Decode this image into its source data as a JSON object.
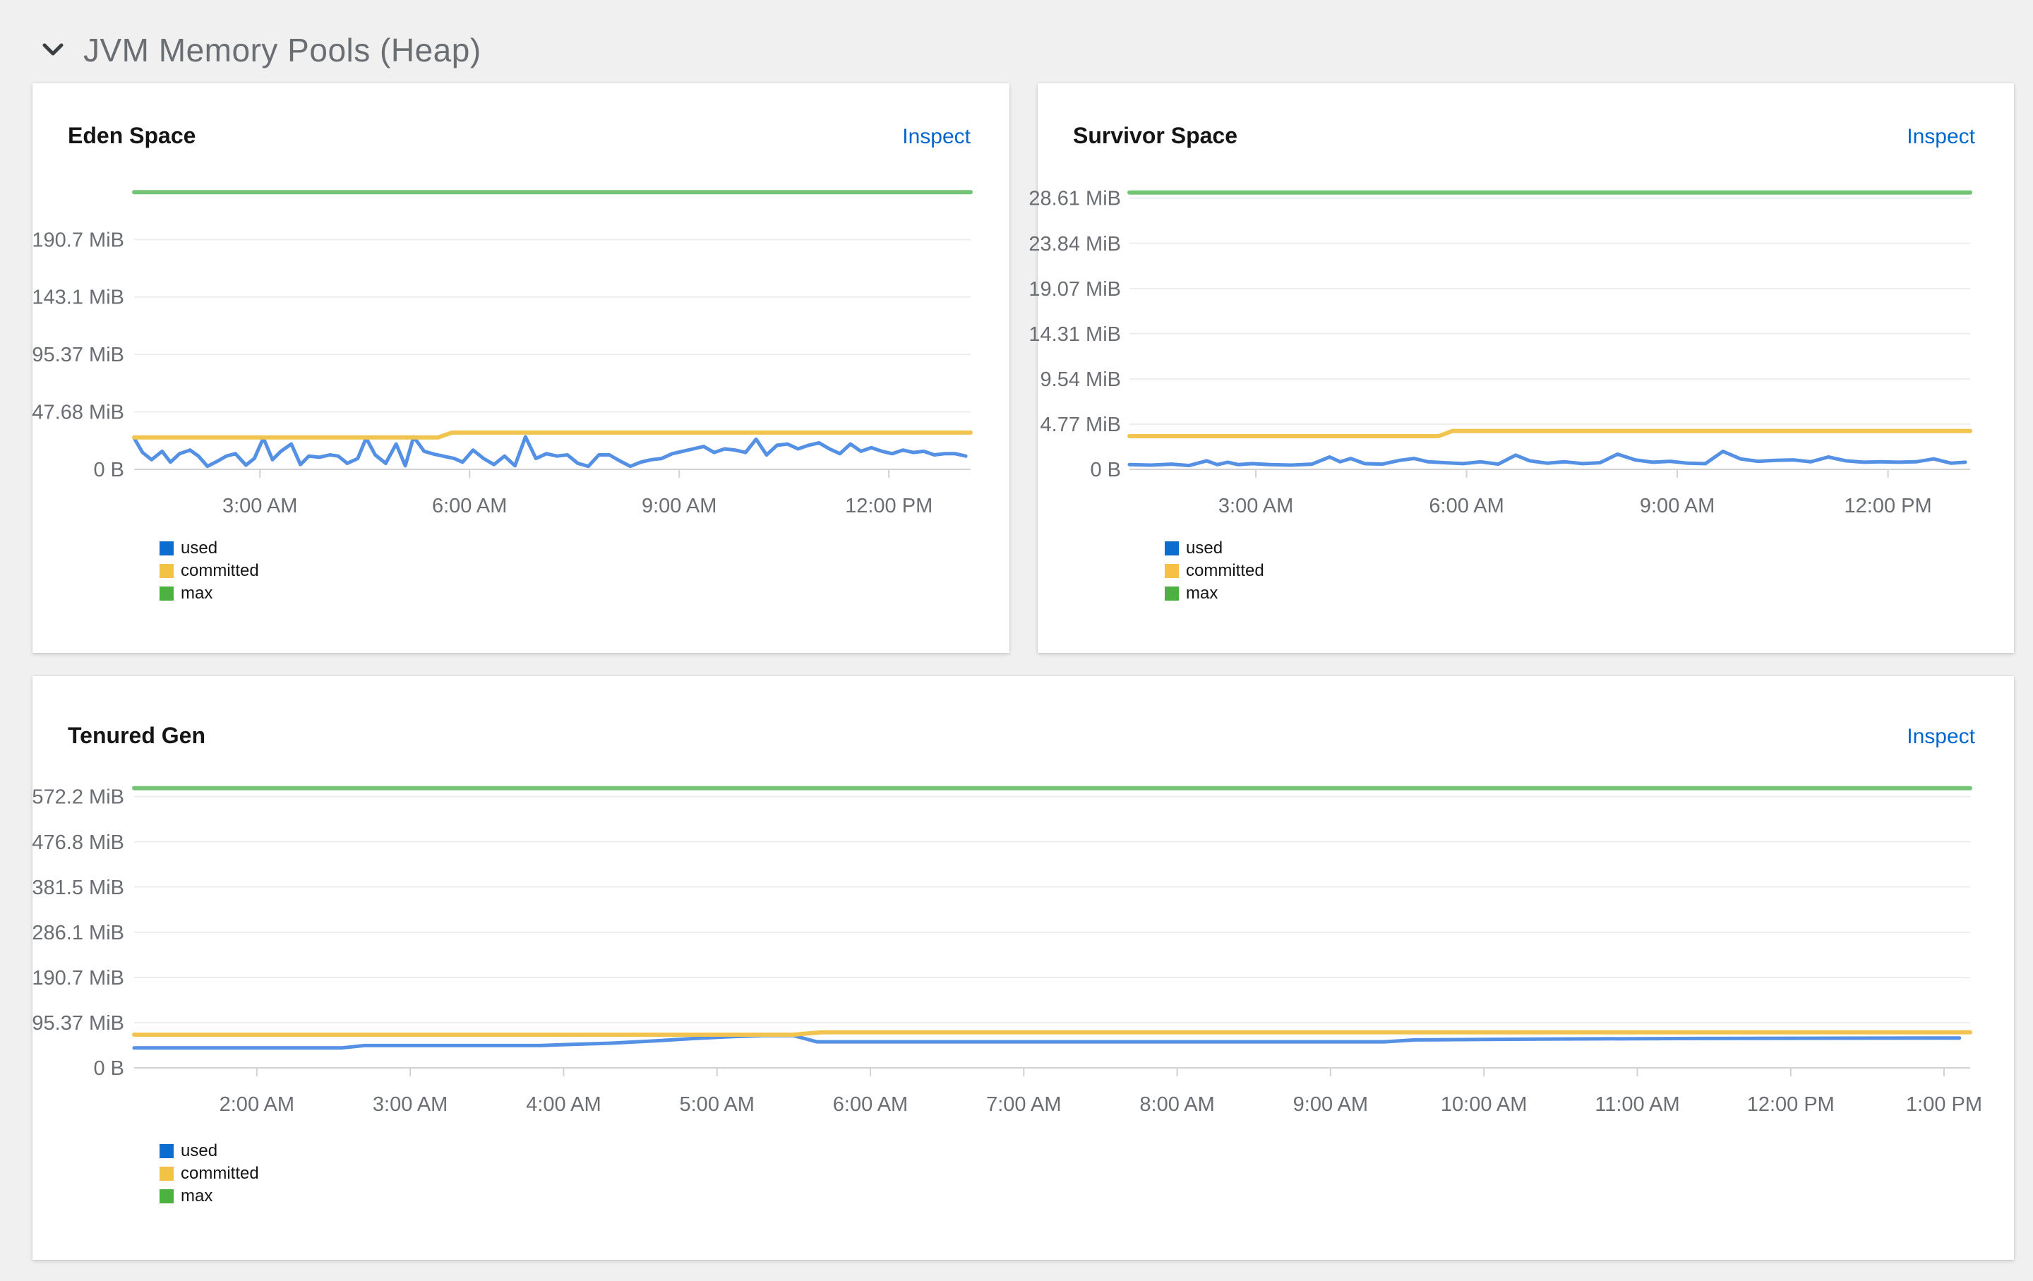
{
  "section": {
    "title": "JVM Memory Pools (Heap)"
  },
  "colors": {
    "page_bg": "#f0f0f0",
    "card_bg": "#ffffff",
    "grid": "#ededed",
    "axis": "#d2d2d2",
    "axis_text": "#6a6e73",
    "title_text": "#151515",
    "link": "#0066cc",
    "used_line": "#5490e4",
    "used_legend": "#0c6dce",
    "committed_line": "#f1c44f",
    "committed_legend": "#f4c145",
    "max_line": "#74c476",
    "max_legend": "#4cb140"
  },
  "chart_data": [
    {
      "id": "eden",
      "type": "line",
      "title": "Eden Space",
      "inspect_label": "Inspect",
      "y_unit": "MiB",
      "ymax_view": 238.4,
      "yticks": [
        {
          "v": 190.7,
          "label": "190.7 MiB"
        },
        {
          "v": 143.1,
          "label": "143.1 MiB"
        },
        {
          "v": 95.37,
          "label": "95.37 MiB"
        },
        {
          "v": 47.68,
          "label": "47.68 MiB"
        },
        {
          "v": 0,
          "label": "0 B"
        }
      ],
      "xdomain": [
        1.2,
        13.17
      ],
      "xticks": [
        {
          "v": 3,
          "label": "3:00 AM"
        },
        {
          "v": 6,
          "label": "6:00 AM"
        },
        {
          "v": 9,
          "label": "9:00 AM"
        },
        {
          "v": 12,
          "label": "12:00 PM"
        }
      ],
      "series": [
        {
          "name": "used",
          "width": 5,
          "points": [
            [
              1.2,
              26
            ],
            [
              1.32,
              14
            ],
            [
              1.45,
              8
            ],
            [
              1.6,
              15
            ],
            [
              1.72,
              6
            ],
            [
              1.85,
              13
            ],
            [
              2.0,
              16
            ],
            [
              2.12,
              11
            ],
            [
              2.25,
              2.5
            ],
            [
              2.4,
              7
            ],
            [
              2.52,
              11
            ],
            [
              2.65,
              13
            ],
            [
              2.8,
              3.5
            ],
            [
              2.92,
              9
            ],
            [
              3.05,
              26
            ],
            [
              3.18,
              8
            ],
            [
              3.3,
              15
            ],
            [
              3.45,
              21
            ],
            [
              3.58,
              4
            ],
            [
              3.7,
              11
            ],
            [
              3.85,
              10
            ],
            [
              4.0,
              12
            ],
            [
              4.12,
              11
            ],
            [
              4.25,
              5
            ],
            [
              4.4,
              9
            ],
            [
              4.52,
              26
            ],
            [
              4.65,
              12
            ],
            [
              4.8,
              5
            ],
            [
              4.95,
              21
            ],
            [
              5.08,
              3
            ],
            [
              5.2,
              27
            ],
            [
              5.35,
              15
            ],
            [
              5.5,
              12.5
            ],
            [
              5.62,
              11
            ],
            [
              5.78,
              9
            ],
            [
              5.9,
              6
            ],
            [
              6.05,
              16
            ],
            [
              6.2,
              9
            ],
            [
              6.35,
              4
            ],
            [
              6.5,
              11
            ],
            [
              6.65,
              3
            ],
            [
              6.8,
              27
            ],
            [
              6.95,
              9
            ],
            [
              7.1,
              13
            ],
            [
              7.25,
              11
            ],
            [
              7.4,
              12
            ],
            [
              7.55,
              5
            ],
            [
              7.7,
              2.5
            ],
            [
              7.85,
              12
            ],
            [
              8.0,
              12
            ],
            [
              8.15,
              7
            ],
            [
              8.3,
              2.5
            ],
            [
              8.45,
              6
            ],
            [
              8.6,
              8
            ],
            [
              8.75,
              9
            ],
            [
              8.9,
              13
            ],
            [
              9.05,
              15
            ],
            [
              9.2,
              17
            ],
            [
              9.35,
              19
            ],
            [
              9.5,
              14
            ],
            [
              9.65,
              17
            ],
            [
              9.8,
              16
            ],
            [
              9.95,
              14
            ],
            [
              10.1,
              25
            ],
            [
              10.25,
              12
            ],
            [
              10.4,
              20
            ],
            [
              10.55,
              21
            ],
            [
              10.7,
              17
            ],
            [
              10.85,
              20
            ],
            [
              11.0,
              22
            ],
            [
              11.15,
              17
            ],
            [
              11.3,
              13
            ],
            [
              11.45,
              21
            ],
            [
              11.6,
              15
            ],
            [
              11.75,
              18
            ],
            [
              11.9,
              15
            ],
            [
              12.05,
              13
            ],
            [
              12.2,
              16
            ],
            [
              12.35,
              14
            ],
            [
              12.5,
              15
            ],
            [
              12.65,
              12
            ],
            [
              12.8,
              13
            ],
            [
              12.95,
              13
            ],
            [
              13.1,
              11
            ]
          ]
        },
        {
          "name": "committed",
          "width": 6,
          "points": [
            [
              1.2,
              26.5
            ],
            [
              5.55,
              26.5
            ],
            [
              5.75,
              30.5
            ],
            [
              13.17,
              30.5
            ]
          ]
        },
        {
          "name": "max",
          "width": 6,
          "points": [
            [
              1.2,
              230
            ],
            [
              13.17,
              230
            ]
          ]
        }
      ]
    },
    {
      "id": "survivor",
      "type": "line",
      "title": "Survivor Space",
      "inspect_label": "Inspect",
      "y_unit": "MiB",
      "ymax_view": 30.3,
      "yticks": [
        {
          "v": 28.61,
          "label": "28.61 MiB"
        },
        {
          "v": 23.84,
          "label": "23.84 MiB"
        },
        {
          "v": 19.07,
          "label": "19.07 MiB"
        },
        {
          "v": 14.31,
          "label": "14.31 MiB"
        },
        {
          "v": 9.54,
          "label": "9.54 MiB"
        },
        {
          "v": 4.77,
          "label": "4.77 MiB"
        },
        {
          "v": 0,
          "label": "0 B"
        }
      ],
      "xdomain": [
        1.2,
        13.17
      ],
      "xticks": [
        {
          "v": 3,
          "label": "3:00 AM"
        },
        {
          "v": 6,
          "label": "6:00 AM"
        },
        {
          "v": 9,
          "label": "9:00 AM"
        },
        {
          "v": 12,
          "label": "12:00 PM"
        }
      ],
      "series": [
        {
          "name": "used",
          "width": 5,
          "points": [
            [
              1.2,
              0.5
            ],
            [
              1.5,
              0.45
            ],
            [
              1.8,
              0.55
            ],
            [
              2.05,
              0.4
            ],
            [
              2.3,
              0.9
            ],
            [
              2.45,
              0.5
            ],
            [
              2.6,
              0.75
            ],
            [
              2.75,
              0.5
            ],
            [
              2.95,
              0.6
            ],
            [
              3.2,
              0.5
            ],
            [
              3.5,
              0.45
            ],
            [
              3.8,
              0.55
            ],
            [
              4.05,
              1.3
            ],
            [
              4.2,
              0.8
            ],
            [
              4.35,
              1.15
            ],
            [
              4.55,
              0.6
            ],
            [
              4.8,
              0.55
            ],
            [
              5.05,
              0.95
            ],
            [
              5.25,
              1.15
            ],
            [
              5.45,
              0.8
            ],
            [
              5.7,
              0.7
            ],
            [
              5.95,
              0.6
            ],
            [
              6.2,
              0.8
            ],
            [
              6.45,
              0.55
            ],
            [
              6.7,
              1.5
            ],
            [
              6.9,
              0.9
            ],
            [
              7.15,
              0.65
            ],
            [
              7.4,
              0.8
            ],
            [
              7.65,
              0.6
            ],
            [
              7.9,
              0.7
            ],
            [
              8.15,
              1.6
            ],
            [
              8.4,
              1.0
            ],
            [
              8.65,
              0.75
            ],
            [
              8.9,
              0.85
            ],
            [
              9.15,
              0.65
            ],
            [
              9.4,
              0.6
            ],
            [
              9.65,
              1.9
            ],
            [
              9.9,
              1.1
            ],
            [
              10.15,
              0.85
            ],
            [
              10.4,
              0.95
            ],
            [
              10.65,
              1.0
            ],
            [
              10.9,
              0.8
            ],
            [
              11.15,
              1.3
            ],
            [
              11.4,
              0.9
            ],
            [
              11.65,
              0.75
            ],
            [
              11.9,
              0.8
            ],
            [
              12.15,
              0.75
            ],
            [
              12.4,
              0.8
            ],
            [
              12.65,
              1.1
            ],
            [
              12.9,
              0.65
            ],
            [
              13.1,
              0.75
            ]
          ]
        },
        {
          "name": "committed",
          "width": 6,
          "points": [
            [
              1.2,
              3.5
            ],
            [
              5.6,
              3.5
            ],
            [
              5.8,
              4.05
            ],
            [
              13.17,
              4.05
            ]
          ]
        },
        {
          "name": "max",
          "width": 6,
          "points": [
            [
              1.2,
              29.2
            ],
            [
              13.17,
              29.2
            ]
          ]
        }
      ]
    },
    {
      "id": "tenured",
      "type": "line",
      "title": "Tenured Gen",
      "inspect_label": "Inspect",
      "y_unit": "MiB",
      "ymax_view": 603,
      "yticks": [
        {
          "v": 572.2,
          "label": "572.2 MiB"
        },
        {
          "v": 476.8,
          "label": "476.8 MiB"
        },
        {
          "v": 381.5,
          "label": "381.5 MiB"
        },
        {
          "v": 286.1,
          "label": "286.1 MiB"
        },
        {
          "v": 190.7,
          "label": "190.7 MiB"
        },
        {
          "v": 95.37,
          "label": "95.37 MiB"
        },
        {
          "v": 0,
          "label": "0 B"
        }
      ],
      "xdomain": [
        1.2,
        13.17
      ],
      "xticks": [
        {
          "v": 2,
          "label": "2:00 AM"
        },
        {
          "v": 3,
          "label": "3:00 AM"
        },
        {
          "v": 4,
          "label": "4:00 AM"
        },
        {
          "v": 5,
          "label": "5:00 AM"
        },
        {
          "v": 6,
          "label": "6:00 AM"
        },
        {
          "v": 7,
          "label": "7:00 AM"
        },
        {
          "v": 8,
          "label": "8:00 AM"
        },
        {
          "v": 9,
          "label": "9:00 AM"
        },
        {
          "v": 10,
          "label": "10:00 AM"
        },
        {
          "v": 11,
          "label": "11:00 AM"
        },
        {
          "v": 12,
          "label": "12:00 PM"
        },
        {
          "v": 13,
          "label": "1:00 PM"
        }
      ],
      "series": [
        {
          "name": "used",
          "width": 5,
          "points": [
            [
              1.2,
              42
            ],
            [
              2.55,
              42
            ],
            [
              2.7,
              47
            ],
            [
              3.85,
              47
            ],
            [
              4.0,
              49
            ],
            [
              4.3,
              52
            ],
            [
              4.6,
              57
            ],
            [
              4.85,
              62
            ],
            [
              5.1,
              66
            ],
            [
              5.3,
              68
            ],
            [
              5.5,
              68
            ],
            [
              5.65,
              55
            ],
            [
              9.35,
              55
            ],
            [
              9.55,
              59
            ],
            [
              10.0,
              60
            ],
            [
              10.6,
              61
            ],
            [
              11.4,
              62
            ],
            [
              12.3,
              62.5
            ],
            [
              13.1,
              63
            ]
          ]
        },
        {
          "name": "committed",
          "width": 6,
          "points": [
            [
              1.2,
              70
            ],
            [
              5.5,
              70
            ],
            [
              5.68,
              75
            ],
            [
              13.17,
              75
            ]
          ]
        },
        {
          "name": "max",
          "width": 6,
          "points": [
            [
              1.2,
              590
            ],
            [
              13.17,
              590
            ]
          ]
        }
      ]
    }
  ]
}
